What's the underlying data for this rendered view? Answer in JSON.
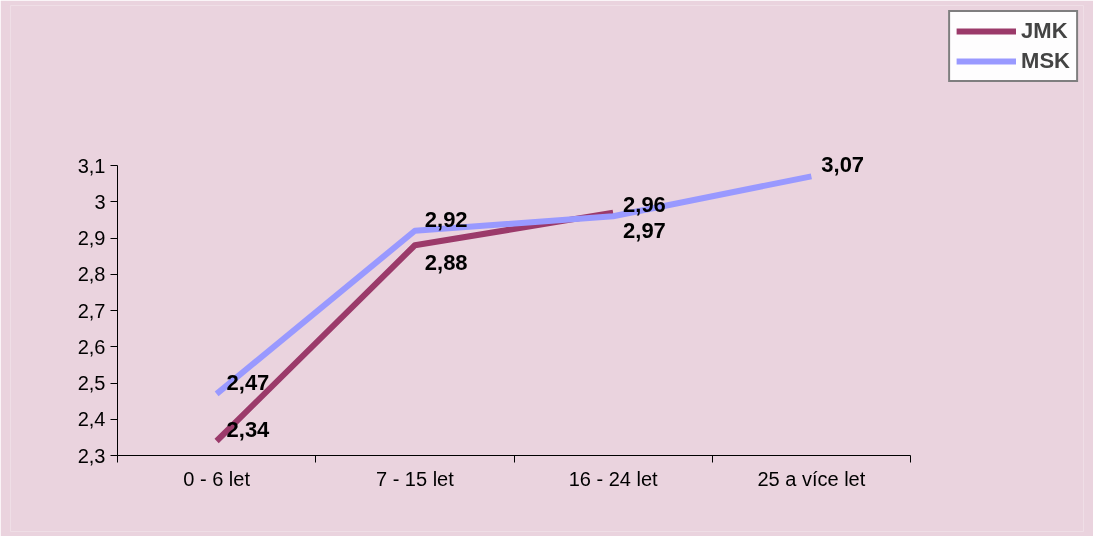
{
  "chart_data": {
    "type": "line",
    "categories": [
      "0 - 6 let",
      "7 - 15 let",
      "16 - 24 let",
      "25 a více let"
    ],
    "series": [
      {
        "name": "JMK",
        "color": "#9b3a6a",
        "values": [
          2.34,
          2.88,
          2.97,
          null
        ],
        "value_labels": [
          "2,34",
          "2,88",
          "2,97",
          null
        ]
      },
      {
        "name": "MSK",
        "color": "#9999ff",
        "values": [
          2.47,
          2.92,
          2.96,
          3.07
        ],
        "value_labels": [
          "2,47",
          "2,92",
          "2,96",
          "3,07"
        ]
      }
    ],
    "ylim": [
      2.3,
      3.1
    ],
    "yticks": [
      {
        "value": 2.3,
        "label": "2,3"
      },
      {
        "value": 2.4,
        "label": "2,4"
      },
      {
        "value": 2.5,
        "label": "2,5"
      },
      {
        "value": 2.6,
        "label": "2,6"
      },
      {
        "value": 2.7,
        "label": "2,7"
      },
      {
        "value": 2.8,
        "label": "2,8"
      },
      {
        "value": 2.9,
        "label": "2,9"
      },
      {
        "value": 3,
        "label": "3"
      },
      {
        "value": 3.1,
        "label": "3,1"
      }
    ],
    "grid": false,
    "legend": "top right",
    "marker": "none",
    "line_style": "solid"
  }
}
